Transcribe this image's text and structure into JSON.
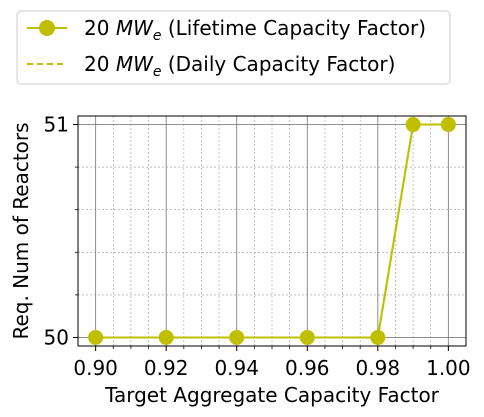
{
  "chart_data": {
    "type": "line",
    "title": "",
    "xlabel": "Target Aggregate Capacity Factor",
    "ylabel": "Req. Num of Reactors",
    "xlim": [
      0.895,
      1.005
    ],
    "ylim": [
      49.96,
      51.04
    ],
    "x_ticks": [
      0.9,
      0.92,
      0.94,
      0.96,
      0.98,
      1.0
    ],
    "x_tick_labels": [
      "0.90",
      "0.92",
      "0.94",
      "0.96",
      "0.98",
      "1.00"
    ],
    "y_ticks": [
      50,
      51
    ],
    "y_tick_labels": [
      "50",
      "51"
    ],
    "grid": true,
    "legend_placement": "top",
    "series": [
      {
        "name_prefix": "20 ",
        "name_math": "MW",
        "name_sub": "e",
        "name_suffix": " (Lifetime Capacity Factor)",
        "style": "solid-marker",
        "color": "#bfbf00",
        "x": [
          0.9,
          0.92,
          0.94,
          0.96,
          0.98,
          0.99,
          1.0
        ],
        "y": [
          50,
          50,
          50,
          50,
          50,
          51,
          51
        ]
      },
      {
        "name_prefix": "20 ",
        "name_math": "MW",
        "name_sub": "e",
        "name_suffix": " (Daily Capacity Factor)",
        "style": "dashed",
        "color": "#bfbf00",
        "x": [
          0.9,
          0.92,
          0.94,
          0.96,
          0.98,
          0.99,
          1.0
        ],
        "y": [
          50,
          50,
          50,
          50,
          50,
          51,
          51
        ]
      }
    ]
  }
}
